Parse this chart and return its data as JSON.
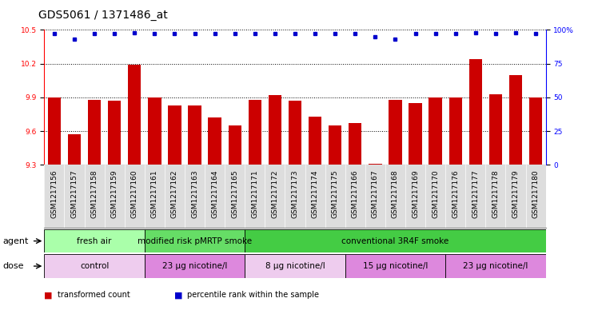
{
  "title": "GDS5061 / 1371486_at",
  "samples": [
    "GSM1217156",
    "GSM1217157",
    "GSM1217158",
    "GSM1217159",
    "GSM1217160",
    "GSM1217161",
    "GSM1217162",
    "GSM1217163",
    "GSM1217164",
    "GSM1217165",
    "GSM1217171",
    "GSM1217172",
    "GSM1217173",
    "GSM1217174",
    "GSM1217175",
    "GSM1217166",
    "GSM1217167",
    "GSM1217168",
    "GSM1217169",
    "GSM1217170",
    "GSM1217176",
    "GSM1217177",
    "GSM1217178",
    "GSM1217179",
    "GSM1217180"
  ],
  "bar_values": [
    9.9,
    9.57,
    9.88,
    9.87,
    10.19,
    9.9,
    9.83,
    9.83,
    9.72,
    9.65,
    9.88,
    9.92,
    9.87,
    9.73,
    9.65,
    9.67,
    9.31,
    9.88,
    9.85,
    9.9,
    9.9,
    10.24,
    9.93,
    10.1,
    9.9
  ],
  "percentile_values": [
    97,
    93,
    97,
    97,
    98,
    97,
    97,
    97,
    97,
    97,
    97,
    97,
    97,
    97,
    97,
    97,
    95,
    93,
    97,
    97,
    97,
    98,
    97,
    98,
    97
  ],
  "ylim_left": [
    9.3,
    10.5
  ],
  "ylim_right": [
    0,
    100
  ],
  "yticks_left": [
    9.3,
    9.6,
    9.9,
    10.2,
    10.5
  ],
  "yticks_right": [
    0,
    25,
    50,
    75,
    100
  ],
  "bar_color": "#cc0000",
  "dot_color": "#0000cc",
  "bar_bottom": 9.3,
  "agent_groups": [
    {
      "label": "fresh air",
      "start": 0,
      "end": 5,
      "color": "#aaffaa"
    },
    {
      "label": "modified risk pMRTP smoke",
      "start": 5,
      "end": 10,
      "color": "#66dd66"
    },
    {
      "label": "conventional 3R4F smoke",
      "start": 10,
      "end": 25,
      "color": "#44cc44"
    }
  ],
  "dose_groups": [
    {
      "label": "control",
      "start": 0,
      "end": 5,
      "color": "#eeccee"
    },
    {
      "label": "23 μg nicotine/l",
      "start": 5,
      "end": 10,
      "color": "#dd88dd"
    },
    {
      "label": "8 μg nicotine/l",
      "start": 10,
      "end": 15,
      "color": "#eeccee"
    },
    {
      "label": "15 μg nicotine/l",
      "start": 15,
      "end": 20,
      "color": "#dd88dd"
    },
    {
      "label": "23 μg nicotine/l",
      "start": 20,
      "end": 25,
      "color": "#dd88dd"
    }
  ],
  "legend_items": [
    {
      "label": "transformed count",
      "color": "#cc0000"
    },
    {
      "label": "percentile rank within the sample",
      "color": "#0000cc"
    }
  ],
  "background_color": "#ffffff",
  "plot_bg_color": "#ffffff",
  "xtick_bg_color": "#dddddd",
  "title_fontsize": 10,
  "tick_fontsize": 6.5,
  "label_fontsize": 8,
  "agent_fontsize": 7.5,
  "dose_fontsize": 7.5
}
